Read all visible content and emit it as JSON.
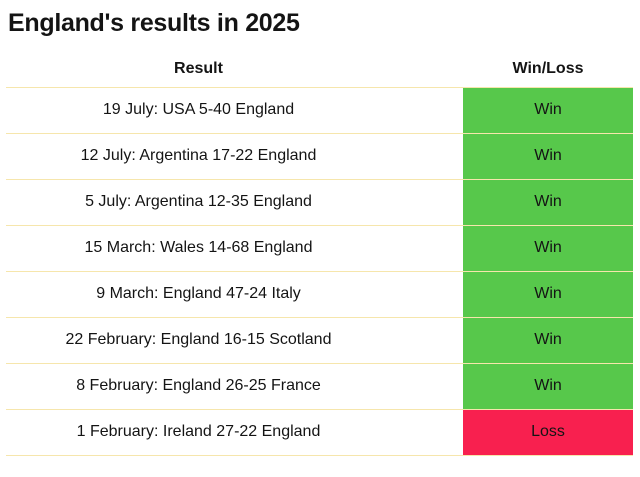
{
  "chart_data": {
    "type": "table",
    "title": "England's results in 2025",
    "columns": [
      "Result",
      "Win/Loss"
    ],
    "rows": [
      [
        "19 July: USA 5-40 England",
        "Win"
      ],
      [
        "12 July: Argentina 17-22 England",
        "Win"
      ],
      [
        "5 July: Argentina 12-35 England",
        "Win"
      ],
      [
        "15 March: Wales 14-68 England",
        "Win"
      ],
      [
        "9 March: England 47-24 Italy",
        "Win"
      ],
      [
        "22 February: England 16-15 Scotland",
        "Win"
      ],
      [
        "8 February: England 26-25 France",
        "Win"
      ],
      [
        "1 February: Ireland 27-22 England",
        "Loss"
      ]
    ],
    "layout": {
      "grid": "horizontal-rules-only",
      "win_rows": 7,
      "loss_rows": 1
    }
  },
  "colors": {
    "win_bg": "#57c84b",
    "loss_bg": "#f8204f",
    "border": "#f6e6ac",
    "text": "#141414",
    "background": "#ffffff"
  }
}
